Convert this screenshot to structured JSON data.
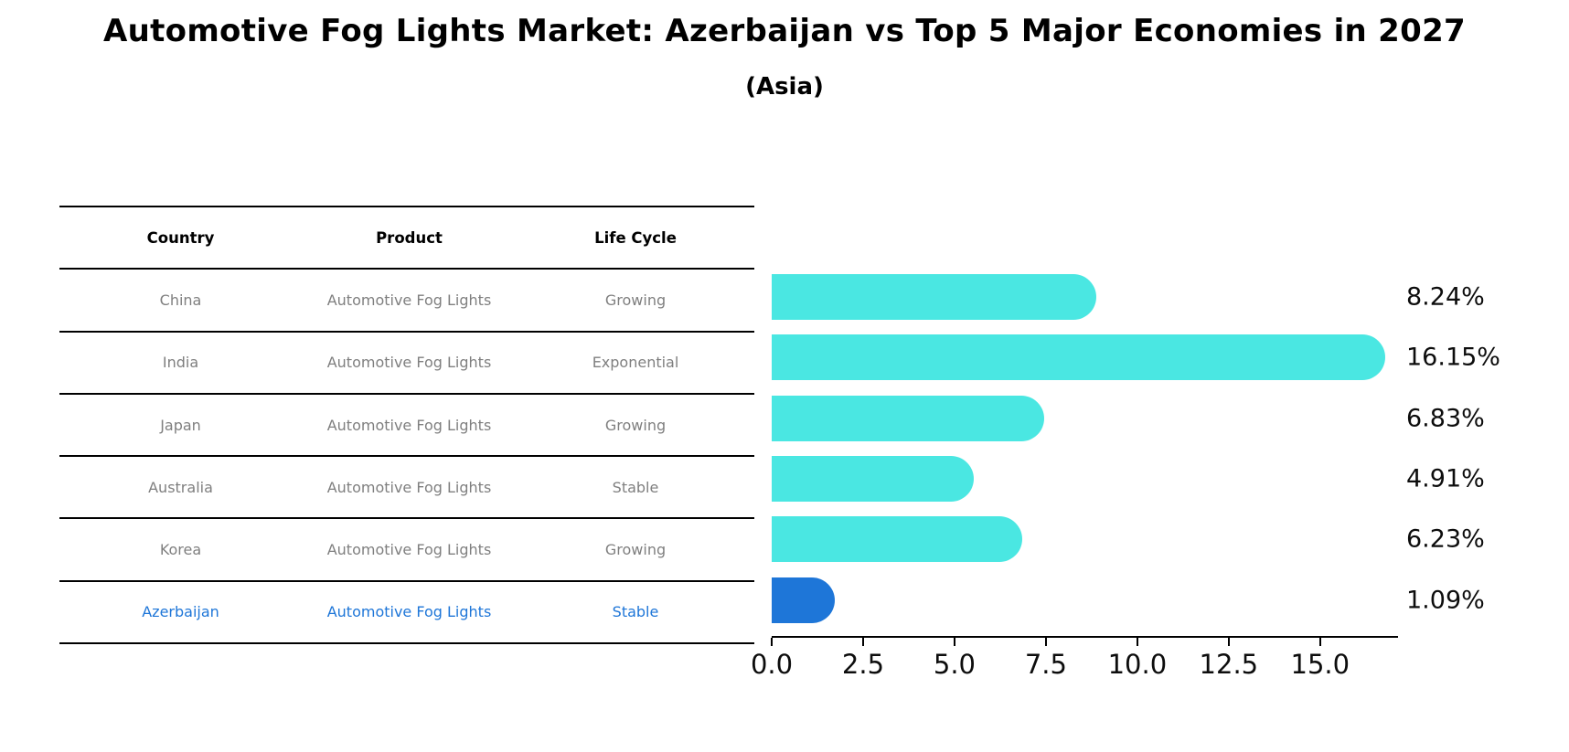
{
  "title": "Automotive Fog Lights Market: Azerbaijan vs Top 5 Major Economies in 2027",
  "subtitle": "(Asia)",
  "table": {
    "headers": [
      "Country",
      "Product",
      "Life Cycle"
    ],
    "rows": [
      {
        "country": "China",
        "product": "Automotive Fog Lights",
        "life_cycle": "Growing",
        "highlight": false
      },
      {
        "country": "India",
        "product": "Automotive Fog Lights",
        "life_cycle": "Exponential",
        "highlight": false
      },
      {
        "country": "Japan",
        "product": "Automotive Fog Lights",
        "life_cycle": "Growing",
        "highlight": false
      },
      {
        "country": "Australia",
        "product": "Automotive Fog Lights",
        "life_cycle": "Stable",
        "highlight": false
      },
      {
        "country": "Korea",
        "product": "Automotive Fog Lights",
        "life_cycle": "Growing",
        "highlight": false
      },
      {
        "country": "Azerbaijan",
        "product": "Automotive Fog Lights",
        "life_cycle": "Stable",
        "highlight": true
      }
    ]
  },
  "chart_data": {
    "type": "bar",
    "orientation": "horizontal",
    "title": "Automotive Fog Lights Market: Azerbaijan vs Top 5 Major Economies in 2027 (Asia)",
    "categories": [
      "China",
      "India",
      "Japan",
      "Australia",
      "Korea",
      "Azerbaijan"
    ],
    "values": [
      8.24,
      16.15,
      6.83,
      4.91,
      6.23,
      1.09
    ],
    "value_labels": [
      "8.24%",
      "16.15%",
      "6.83%",
      "4.91%",
      "6.23%",
      "1.09%"
    ],
    "xlabel": "",
    "ylabel": "",
    "xlim": [
      0,
      17.08
    ],
    "xticks": [
      0,
      2.5,
      5,
      7.5,
      10,
      12.5,
      15
    ],
    "xtick_labels": [
      "0.0",
      "2.5",
      "5.0",
      "7.5",
      "10.0",
      "12.5",
      "15.0"
    ],
    "grid": false,
    "legend": false,
    "bar_color": "#4ae7e2",
    "highlight_color": "#1e76d8",
    "highlight_index": 5,
    "highlight_edge_style": "dotted"
  },
  "colors": {
    "background": "#ffffff",
    "table_rule": "#000000",
    "table_text": "#7f7f7f",
    "header_text": "#000000",
    "highlight_text": "#1e76d8",
    "tick_text": "#0d0d0d"
  }
}
